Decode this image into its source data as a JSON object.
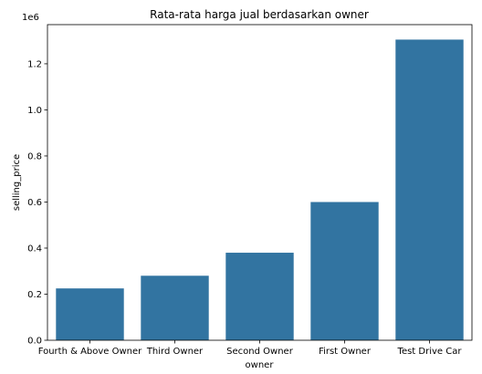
{
  "chart_data": {
    "type": "bar",
    "title": "Rata-rata harga jual berdasarkan owner",
    "xlabel": "owner",
    "ylabel": "selling_price",
    "y_offset_text": "1e6",
    "categories": [
      "Fourth & Above Owner",
      "Third Owner",
      "Second Owner",
      "First Owner",
      "Test Drive Car"
    ],
    "values": [
      225000,
      280000,
      380000,
      600000,
      1305000
    ],
    "ylim": [
      0,
      1370000
    ],
    "yticks": [
      0,
      200000,
      400000,
      600000,
      800000,
      1000000,
      1200000
    ],
    "ytick_labels": [
      "0.0",
      "0.2",
      "0.4",
      "0.6",
      "0.8",
      "1.0",
      "1.2"
    ],
    "bar_color": "#3274a1",
    "grid": false,
    "legend": "none"
  }
}
